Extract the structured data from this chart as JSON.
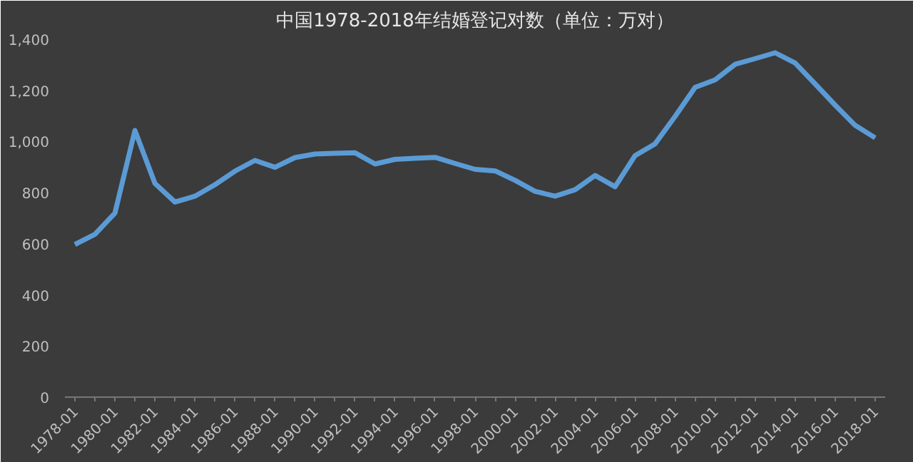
{
  "chart_data": {
    "type": "line",
    "title": "中国1978-2018年结婚登记对数（单位：万对）",
    "categories": [
      "1978-01",
      null,
      "1980-01",
      null,
      "1982-01",
      null,
      "1984-01",
      null,
      "1986-01",
      null,
      "1988-01",
      null,
      "1990-01",
      null,
      "1992-01",
      null,
      "1994-01",
      null,
      "1996-01",
      null,
      "1998-01",
      null,
      "2000-01",
      null,
      "2002-01",
      null,
      "2004-01",
      null,
      "2006-01",
      null,
      "2008-01",
      null,
      "2010-01",
      null,
      "2012-01",
      null,
      "2014-01",
      null,
      "2016-01",
      null,
      "2018-01"
    ],
    "series": [
      {
        "color": "#5b9bd5",
        "values": [
          597,
          637,
          720,
          1043,
          836,
          763,
          786,
          831,
          884,
          926,
          899,
          937,
          951,
          954,
          956,
          912,
          930,
          934,
          938,
          914,
          891,
          885,
          848,
          805,
          786,
          811,
          867,
          823,
          945,
          991,
          1098,
          1212,
          1241,
          1302,
          1324,
          1347,
          1307,
          1225,
          1142,
          1063,
          1014
        ]
      }
    ],
    "ylim": [
      0,
      1400
    ],
    "yticks": [
      0,
      200,
      400,
      600,
      800,
      {
        "value": 1000,
        "label": "1,000"
      },
      {
        "value": 1200,
        "label": "1,200"
      },
      {
        "value": 1400,
        "label": "1,400"
      }
    ],
    "grid": false,
    "marker": "none",
    "line_style": "solid"
  }
}
